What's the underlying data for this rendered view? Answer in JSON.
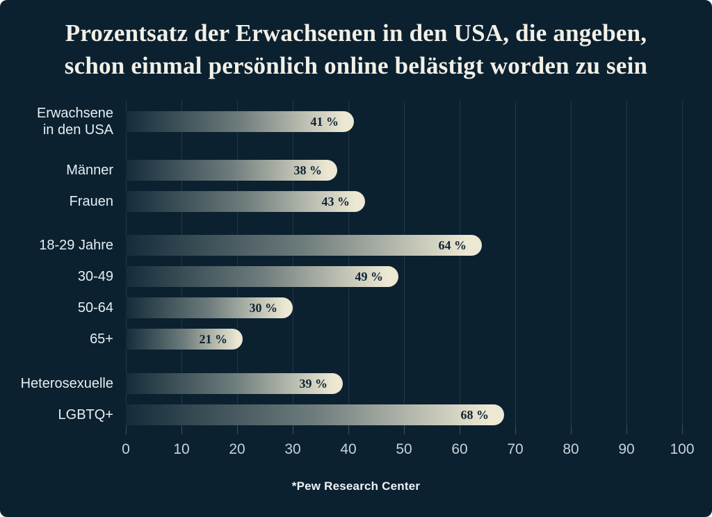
{
  "title": {
    "text": "Prozentsatz der Erwachsenen in den USA, die angeben, schon einmal persönlich online belästigt worden zu sein",
    "line1": "Prozentsatz der Erwachsenen in den USA, die angeben,",
    "line2": "schon einmal persönlich online belästigt worden zu sein"
  },
  "footer": {
    "source": "*Pew Research Center"
  },
  "colors": {
    "bg": "#0B2130",
    "grid": "#203845",
    "tick": "#3C5260",
    "bar_start": "#142C3A",
    "bar_end": "#ECE8D3",
    "value_text": "#0E2433",
    "category_label": "#E7EEF2",
    "axis_label": "#C7D3DA",
    "title_text": "#F2EFE6",
    "footer_text": "#EFF2F3"
  },
  "chart_data": {
    "type": "bar",
    "orientation": "horizontal",
    "title": "Prozentsatz der Erwachsenen in den USA, die angeben, schon einmal persönlich online belästigt worden zu sein",
    "xlabel": "",
    "ylabel": "",
    "xlim": [
      0,
      100
    ],
    "x_ticks": [
      0,
      10,
      20,
      30,
      40,
      50,
      60,
      70,
      80,
      90,
      100
    ],
    "grid": "vertical",
    "value_suffix": " %",
    "categories": [
      "Erwachsene in den USA",
      "Männer",
      "Frauen",
      "18-29 Jahre",
      "30-49",
      "50-64",
      "65+",
      "Heterosexuelle",
      "LGBTQ+"
    ],
    "values": [
      41,
      38,
      43,
      64,
      49,
      30,
      21,
      39,
      68
    ],
    "rows": [
      {
        "label": "Erwachsene in den USA",
        "label_lines": [
          "Erwachsene",
          "in den USA"
        ],
        "value": 41,
        "value_label": "41 %",
        "group": 0
      },
      {
        "label": "Männer",
        "label_lines": [
          "Männer"
        ],
        "value": 38,
        "value_label": "38 %",
        "group": 1
      },
      {
        "label": "Frauen",
        "label_lines": [
          "Frauen"
        ],
        "value": 43,
        "value_label": "43 %",
        "group": 1
      },
      {
        "label": "18-29 Jahre",
        "label_lines": [
          "18-29 Jahre"
        ],
        "value": 64,
        "value_label": "64 %",
        "group": 2
      },
      {
        "label": "30-49",
        "label_lines": [
          "30-49"
        ],
        "value": 49,
        "value_label": "49 %",
        "group": 2
      },
      {
        "label": "50-64",
        "label_lines": [
          "50-64"
        ],
        "value": 30,
        "value_label": "30 %",
        "group": 2
      },
      {
        "label": "65+",
        "label_lines": [
          "65+"
        ],
        "value": 21,
        "value_label": "21 %",
        "group": 2
      },
      {
        "label": "Heterosexuelle",
        "label_lines": [
          "Heterosexuelle"
        ],
        "value": 39,
        "value_label": "39 %",
        "group": 3
      },
      {
        "label": "LGBTQ+",
        "label_lines": [
          "LGBTQ+"
        ],
        "value": 68,
        "value_label": "68 %",
        "group": 3
      }
    ],
    "source": "*Pew Research Center",
    "legend": null
  }
}
